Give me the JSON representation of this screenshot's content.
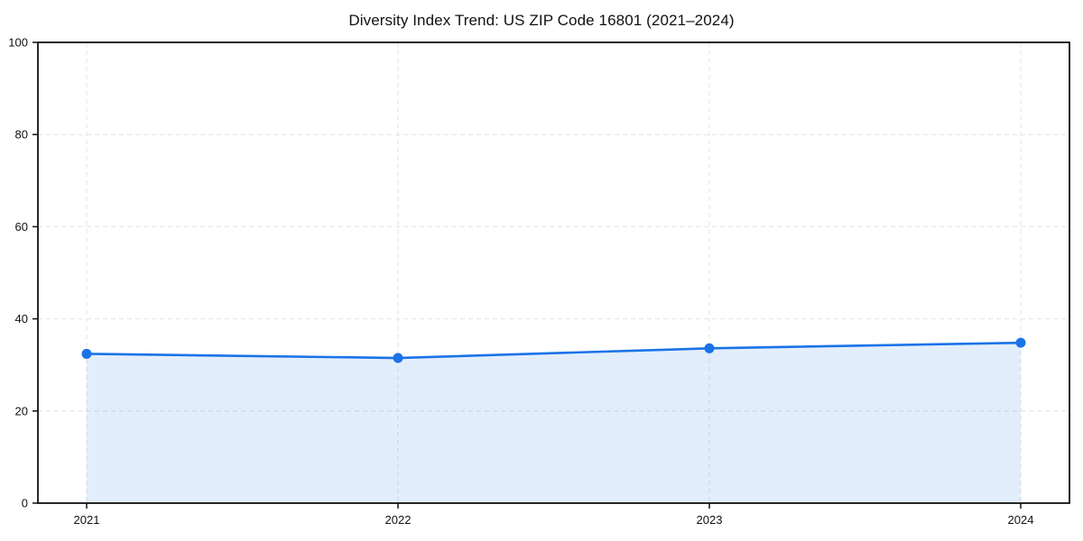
{
  "chart_data": {
    "type": "area",
    "title": "Diversity Index Trend: US ZIP Code 16801 (2021–2024)",
    "series_name": "Diversity Index",
    "categories": [
      "2021",
      "2022",
      "2023",
      "2024"
    ],
    "values": [
      32.4,
      31.5,
      33.6,
      34.8
    ],
    "xlabel": "",
    "ylabel": "",
    "ylim": [
      0,
      100
    ],
    "y_ticks": [
      0,
      20,
      40,
      60,
      80,
      100
    ],
    "grid": true,
    "grid_style": "dashed",
    "legend": "none",
    "colors": {
      "line": "#1a73e8",
      "marker": "#1a73e8",
      "fill": "#1a73e8",
      "fill_opacity": 0.12,
      "gridline": "#e2e2e2",
      "spine": "#111111",
      "text": "#111111",
      "background": "#ffffff"
    }
  }
}
